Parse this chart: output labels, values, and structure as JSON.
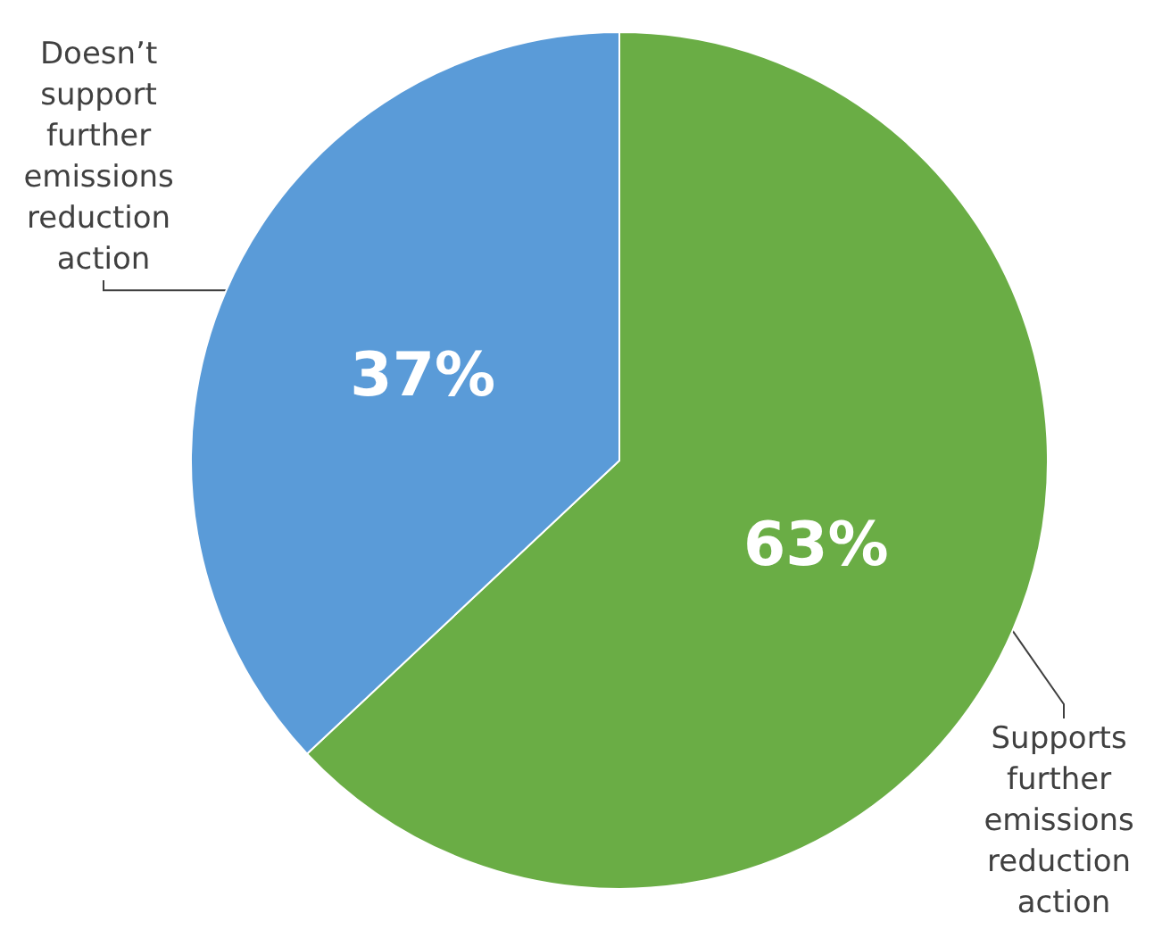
{
  "chart_data": {
    "type": "pie",
    "categories": [
      "Supports further emissions reduction action",
      "Doesn’t support further emissions reduction action"
    ],
    "values": [
      63,
      37
    ],
    "colors": [
      "#6aad45",
      "#5a9bd8"
    ],
    "value_labels": [
      "63%",
      "37%"
    ],
    "legend": false
  }
}
